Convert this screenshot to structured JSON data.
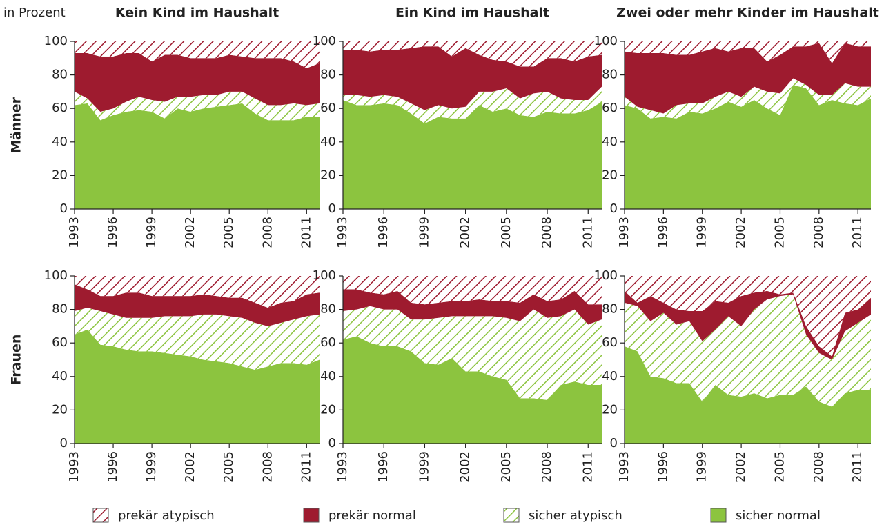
{
  "chart_data": [
    {
      "type": "area",
      "y_label": "in Prozent",
      "title": "Kein Kind im Haushalt",
      "row_label": "Männer",
      "x": [
        1993,
        1994,
        1995,
        1996,
        1997,
        1998,
        1999,
        2000,
        2001,
        2002,
        2003,
        2004,
        2005,
        2006,
        2007,
        2008,
        2009,
        2010,
        2011,
        2012
      ],
      "xlim": [
        1993,
        2012
      ],
      "xticks": [
        1993,
        1996,
        1999,
        2002,
        2005,
        2008,
        2011
      ],
      "ylim": [
        0,
        100
      ],
      "yticks": [
        0,
        20,
        40,
        60,
        80,
        100
      ],
      "series": [
        {
          "name": "sicher normal",
          "color": "#8cc43f",
          "hatched": false,
          "values": [
            62,
            63,
            53,
            56,
            58,
            59,
            58,
            54,
            60,
            58,
            60,
            61,
            62,
            63,
            57,
            53,
            53,
            53,
            55,
            55
          ]
        },
        {
          "name": "sicher atypisch",
          "color": "#8cc43f",
          "hatched": true,
          "values": [
            8,
            3,
            5,
            4,
            6,
            8,
            7,
            10,
            7,
            9,
            8,
            7,
            8,
            7,
            9,
            9,
            9,
            10,
            7,
            8
          ]
        },
        {
          "name": "prekär normal",
          "color": "#9e1b2f",
          "hatched": false,
          "values": [
            23,
            27,
            33,
            31,
            29,
            26,
            23,
            28,
            25,
            23,
            22,
            22,
            22,
            21,
            24,
            28,
            28,
            25,
            22,
            24
          ]
        },
        {
          "name": "prekär atypisch",
          "color": "#9e1b2f",
          "hatched": true,
          "values": [
            7,
            7,
            9,
            9,
            7,
            7,
            12,
            8,
            8,
            10,
            10,
            10,
            8,
            9,
            10,
            10,
            10,
            12,
            16,
            13
          ]
        }
      ]
    },
    {
      "type": "area",
      "title": "Ein Kind im Haushalt",
      "x": [
        1993,
        1994,
        1995,
        1996,
        1997,
        1998,
        1999,
        2000,
        2001,
        2002,
        2003,
        2004,
        2005,
        2006,
        2007,
        2008,
        2009,
        2010,
        2011,
        2012
      ],
      "xlim": [
        1993,
        2012
      ],
      "xticks": [
        1993,
        1996,
        1999,
        2002,
        2005,
        2008,
        2011
      ],
      "ylim": [
        0,
        100
      ],
      "yticks": [
        0,
        20,
        40,
        60,
        80,
        100
      ],
      "series": [
        {
          "color": "#8cc43f",
          "hatched": false,
          "values": [
            65,
            62,
            62,
            63,
            62,
            57,
            51,
            55,
            54,
            54,
            62,
            58,
            60,
            56,
            55,
            58,
            57,
            57,
            59,
            64
          ]
        },
        {
          "color": "#8cc43f",
          "hatched": true,
          "values": [
            3,
            6,
            5,
            5,
            5,
            6,
            8,
            7,
            6,
            7,
            8,
            12,
            12,
            10,
            14,
            12,
            9,
            8,
            6,
            9
          ]
        },
        {
          "color": "#9e1b2f",
          "hatched": false,
          "values": [
            27,
            27,
            27,
            27,
            28,
            33,
            38,
            35,
            31,
            35,
            22,
            19,
            16,
            19,
            16,
            20,
            24,
            23,
            26,
            19
          ]
        },
        {
          "color": "#9e1b2f",
          "hatched": true,
          "values": [
            5,
            5,
            6,
            5,
            5,
            4,
            3,
            3,
            9,
            4,
            8,
            11,
            12,
            15,
            15,
            10,
            10,
            12,
            9,
            8
          ]
        }
      ]
    },
    {
      "type": "area",
      "title": "Zwei oder mehr Kinder im Haushalt",
      "x": [
        1993,
        1994,
        1995,
        1996,
        1997,
        1998,
        1999,
        2000,
        2001,
        2002,
        2003,
        2004,
        2005,
        2006,
        2007,
        2008,
        2009,
        2010,
        2011,
        2012
      ],
      "xlim": [
        1993,
        2012
      ],
      "xticks": [
        1993,
        1996,
        1999,
        2002,
        2005,
        2008,
        2011
      ],
      "ylim": [
        0,
        100
      ],
      "yticks": [
        0,
        20,
        40,
        60,
        80,
        100
      ],
      "series": [
        {
          "color": "#8cc43f",
          "hatched": false,
          "values": [
            62,
            60,
            54,
            55,
            54,
            58,
            57,
            60,
            64,
            61,
            65,
            60,
            56,
            74,
            72,
            62,
            65,
            63,
            62,
            66
          ]
        },
        {
          "color": "#8cc43f",
          "hatched": true,
          "values": [
            5,
            1,
            5,
            2,
            8,
            5,
            6,
            7,
            6,
            6,
            8,
            10,
            13,
            4,
            2,
            6,
            3,
            12,
            11,
            7
          ]
        },
        {
          "color": "#9e1b2f",
          "hatched": false,
          "values": [
            27,
            32,
            34,
            36,
            30,
            29,
            31,
            29,
            24,
            29,
            23,
            18,
            23,
            19,
            23,
            31,
            19,
            24,
            24,
            24
          ]
        },
        {
          "color": "#9e1b2f",
          "hatched": true,
          "values": [
            6,
            7,
            7,
            7,
            8,
            8,
            6,
            4,
            6,
            4,
            4,
            12,
            8,
            3,
            3,
            1,
            13,
            1,
            3,
            3
          ]
        }
      ]
    },
    {
      "type": "area",
      "row_label": "Frauen",
      "x": [
        1993,
        1994,
        1995,
        1996,
        1997,
        1998,
        1999,
        2000,
        2001,
        2002,
        2003,
        2004,
        2005,
        2006,
        2007,
        2008,
        2009,
        2010,
        2011,
        2012
      ],
      "xlim": [
        1993,
        2012
      ],
      "xticks": [
        1993,
        1996,
        1999,
        2002,
        2005,
        2008,
        2011
      ],
      "ylim": [
        0,
        100
      ],
      "yticks": [
        0,
        20,
        40,
        60,
        80,
        100
      ],
      "series": [
        {
          "color": "#8cc43f",
          "hatched": false,
          "values": [
            65,
            68,
            59,
            58,
            56,
            55,
            55,
            54,
            53,
            52,
            50,
            49,
            48,
            46,
            44,
            46,
            48,
            48,
            47,
            50
          ]
        },
        {
          "color": "#8cc43f",
          "hatched": true,
          "values": [
            14,
            13,
            20,
            19,
            19,
            20,
            20,
            22,
            23,
            24,
            27,
            28,
            28,
            29,
            28,
            24,
            24,
            26,
            29,
            27
          ]
        },
        {
          "color": "#9e1b2f",
          "hatched": false,
          "values": [
            16,
            11,
            9,
            11,
            15,
            15,
            13,
            12,
            12,
            12,
            12,
            11,
            11,
            12,
            12,
            11,
            12,
            11,
            13,
            13
          ]
        },
        {
          "color": "#9e1b2f",
          "hatched": true,
          "values": [
            5,
            8,
            12,
            12,
            10,
            10,
            12,
            12,
            12,
            12,
            11,
            12,
            13,
            13,
            16,
            19,
            16,
            15,
            11,
            10
          ]
        }
      ]
    },
    {
      "type": "area",
      "x": [
        1993,
        1994,
        1995,
        1996,
        1997,
        1998,
        1999,
        2000,
        2001,
        2002,
        2003,
        2004,
        2005,
        2006,
        2007,
        2008,
        2009,
        2010,
        2011,
        2012
      ],
      "xlim": [
        1993,
        2012
      ],
      "xticks": [
        1993,
        1996,
        1999,
        2002,
        2005,
        2008,
        2011
      ],
      "ylim": [
        0,
        100
      ],
      "yticks": [
        0,
        20,
        40,
        60,
        80,
        100
      ],
      "series": [
        {
          "color": "#8cc43f",
          "hatched": false,
          "values": [
            62,
            64,
            60,
            58,
            58,
            55,
            48,
            47,
            51,
            43,
            43,
            40,
            38,
            27,
            27,
            26,
            35,
            37,
            35,
            35
          ]
        },
        {
          "color": "#8cc43f",
          "hatched": true,
          "values": [
            17,
            16,
            22,
            22,
            22,
            19,
            26,
            28,
            25,
            33,
            33,
            36,
            37,
            46,
            53,
            49,
            41,
            43,
            36,
            39
          ]
        },
        {
          "color": "#9e1b2f",
          "hatched": false,
          "values": [
            13,
            12,
            8,
            9,
            11,
            10,
            9,
            9,
            9,
            9,
            10,
            9,
            10,
            11,
            9,
            10,
            10,
            11,
            12,
            9
          ]
        },
        {
          "color": "#9e1b2f",
          "hatched": true,
          "values": [
            8,
            8,
            10,
            11,
            9,
            16,
            17,
            16,
            15,
            15,
            14,
            15,
            15,
            16,
            11,
            15,
            14,
            9,
            17,
            17
          ]
        }
      ]
    },
    {
      "type": "area",
      "x": [
        1993,
        1994,
        1995,
        1996,
        1997,
        1998,
        1999,
        2000,
        2001,
        2002,
        2003,
        2004,
        2005,
        2006,
        2007,
        2008,
        2009,
        2010,
        2011,
        2012
      ],
      "xlim": [
        1993,
        2012
      ],
      "xticks": [
        1993,
        1996,
        1999,
        2002,
        2005,
        2008,
        2011
      ],
      "ylim": [
        0,
        100
      ],
      "yticks": [
        0,
        20,
        40,
        60,
        80,
        100
      ],
      "series": [
        {
          "color": "#8cc43f",
          "hatched": false,
          "values": [
            58,
            55,
            40,
            39,
            36,
            36,
            25,
            35,
            29,
            28,
            30,
            27,
            29,
            29,
            34,
            25,
            22,
            30,
            32,
            32
          ]
        },
        {
          "color": "#8cc43f",
          "hatched": true,
          "values": [
            26,
            27,
            33,
            39,
            35,
            37,
            36,
            33,
            47,
            42,
            50,
            59,
            59,
            60,
            31,
            29,
            28,
            37,
            40,
            45
          ]
        },
        {
          "color": "#9e1b2f",
          "hatched": false,
          "values": [
            7,
            2,
            15,
            6,
            9,
            6,
            18,
            17,
            8,
            18,
            10,
            5,
            1,
            1,
            5,
            4,
            2,
            11,
            8,
            10
          ]
        },
        {
          "color": "#9e1b2f",
          "hatched": true,
          "values": [
            9,
            16,
            12,
            16,
            20,
            21,
            21,
            15,
            16,
            12,
            10,
            9,
            11,
            10,
            30,
            42,
            48,
            22,
            20,
            13
          ]
        }
      ]
    }
  ]
}
